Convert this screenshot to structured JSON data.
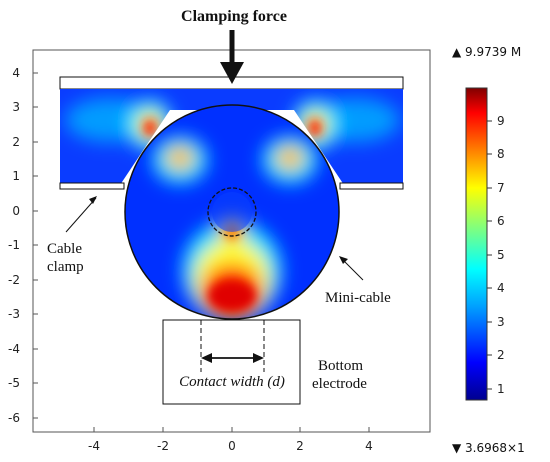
{
  "annotations": {
    "clamping_force": "Clamping force",
    "cable_clamp_line1": "Cable",
    "cable_clamp_line2": "clamp",
    "mini_cable": "Mini-cable",
    "contact_width": "Contact width (d)",
    "bottom_line1": "Bottom",
    "bottom_line2": "electrode"
  },
  "axes": {
    "x_ticks": [
      "-4",
      "-2",
      "0",
      "2",
      "4"
    ],
    "y_ticks": [
      "4",
      "3",
      "2",
      "1",
      "0",
      "-1",
      "-2",
      "-3",
      "-4",
      "-5",
      "-6"
    ]
  },
  "colorbar": {
    "max_label": "▲ 9.9739 M",
    "min_label": "▼ 3.6968×1",
    "ticks": [
      "9",
      "8",
      "7",
      "6",
      "5",
      "4",
      "3",
      "2",
      "1"
    ],
    "colors": [
      "#00008f",
      "#0000ff",
      "#00a0ff",
      "#00ffff",
      "#7fff7f",
      "#ffff00",
      "#ff8000",
      "#ff0000",
      "#800000"
    ]
  }
}
